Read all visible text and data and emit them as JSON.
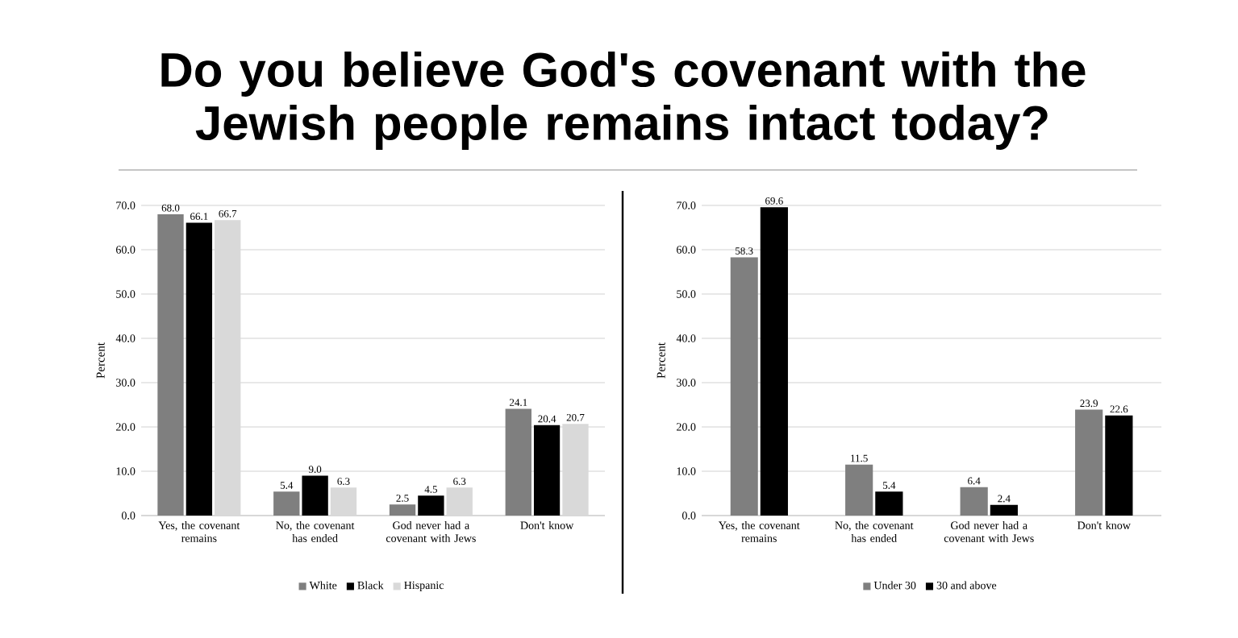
{
  "chart_data": [
    {
      "type": "bar",
      "title": "Do you believe God's covenant with the Jewish people remains intact today?",
      "ylabel": "Percent",
      "categories": [
        "Yes, the covenant remains",
        "No, the covenant has ended",
        "God never had a covenant with Jews",
        "Don't know"
      ],
      "series": [
        {
          "name": "White",
          "color": "#7f7f7f",
          "values": [
            68.0,
            5.4,
            2.5,
            24.1
          ],
          "value_labels": [
            "68.0",
            "5.4",
            "2.5",
            "24.1"
          ]
        },
        {
          "name": "Black",
          "color": "#000000",
          "values": [
            66.1,
            9.0,
            4.5,
            20.4
          ],
          "value_labels": [
            "66.1",
            "9.0",
            "4.5",
            "20.4"
          ]
        },
        {
          "name": "Hispanic",
          "color": "#d9d9d9",
          "values": [
            66.7,
            6.3,
            6.3,
            20.7
          ],
          "value_labels": [
            "66.7",
            "6.3",
            "6.3",
            "20.7"
          ]
        }
      ],
      "ylim": [
        0,
        70
      ],
      "yticks": [
        {
          "value": 0,
          "label": "0.0"
        },
        {
          "value": 10,
          "label": "10.0"
        },
        {
          "value": 20,
          "label": "20.0"
        },
        {
          "value": 30,
          "label": "30.0"
        },
        {
          "value": 40,
          "label": "40.0"
        },
        {
          "value": 50,
          "label": "50.0"
        },
        {
          "value": 60,
          "label": "60.0"
        },
        {
          "value": 70,
          "label": "70.0"
        }
      ],
      "grid": "y",
      "legend": "bottom"
    },
    {
      "type": "bar",
      "ylabel": "Percent",
      "categories": [
        "Yes, the covenant remains",
        "No, the covenant has ended",
        "God never had a covenant with Jews",
        "Don't know"
      ],
      "series": [
        {
          "name": "Under 30",
          "color": "#7f7f7f",
          "values": [
            58.3,
            11.5,
            6.4,
            23.9
          ],
          "value_labels": [
            "58.3",
            "11.5",
            "6.4",
            "23.9"
          ]
        },
        {
          "name": "30 and above",
          "color": "#000000",
          "values": [
            69.6,
            5.4,
            2.4,
            22.6
          ],
          "value_labels": [
            "69.6",
            "5.4",
            "2.4",
            "22.6"
          ]
        }
      ],
      "ylim": [
        0,
        70
      ],
      "yticks": [
        {
          "value": 0,
          "label": "0.0"
        },
        {
          "value": 10,
          "label": "10.0"
        },
        {
          "value": 20,
          "label": "20.0"
        },
        {
          "value": 30,
          "label": "30.0"
        },
        {
          "value": 40,
          "label": "40.0"
        },
        {
          "value": 50,
          "label": "50.0"
        },
        {
          "value": 60,
          "label": "60.0"
        },
        {
          "value": 70,
          "label": "70.0"
        }
      ],
      "grid": "y",
      "legend": "bottom"
    }
  ]
}
